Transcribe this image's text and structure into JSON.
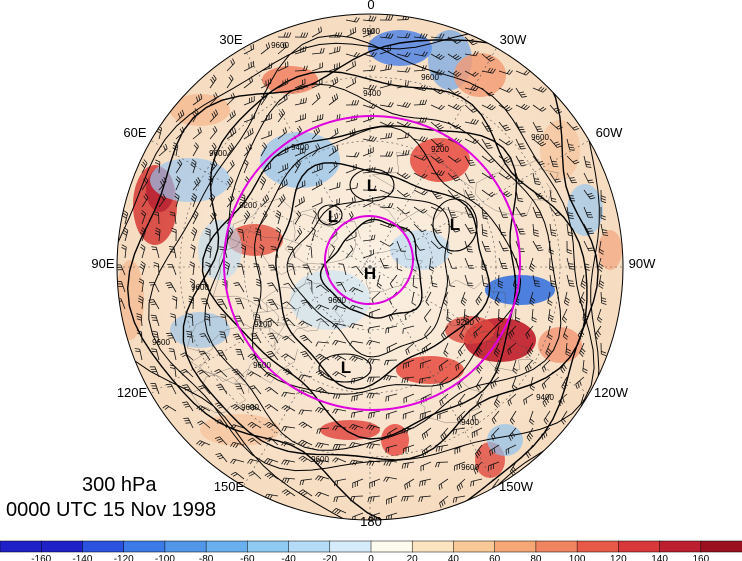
{
  "map": {
    "projection": "north polar stereographic",
    "level_label": "300 hPa",
    "time_label": "0000 UTC 15 Nov 1998",
    "longitude_labels": [
      "0",
      "30W",
      "60W",
      "90W",
      "120W",
      "150W",
      "180",
      "150E",
      "120E",
      "90E",
      "60E",
      "30E"
    ],
    "pressure_systems": [
      {
        "type": "H",
        "label": "H"
      },
      {
        "type": "L",
        "label": "L"
      },
      {
        "type": "L",
        "label": "L"
      },
      {
        "type": "L",
        "label": "L"
      },
      {
        "type": "L",
        "label": "L"
      }
    ],
    "contour_labels": [
      "9600",
      "9500",
      "9400",
      "9200",
      "9600",
      "9200",
      "9600",
      "9200",
      "9600",
      "9600",
      "9400",
      "9200",
      "9600",
      "9600",
      "9600",
      "9600",
      "9400",
      "9400",
      "9600",
      "9600"
    ],
    "colors": {
      "magenta_ring": "#e000e0",
      "contour": "#000000",
      "ocean_outline": "#111111"
    }
  },
  "colorbar": {
    "ticks": [
      "-160",
      "-140",
      "-120",
      "-100",
      "-80",
      "-60",
      "-40",
      "-20",
      "0",
      "20",
      "40",
      "60",
      "80",
      "100",
      "120",
      "140",
      "160"
    ],
    "colors": [
      "#2020c8",
      "#2c52e0",
      "#3c7ae8",
      "#5296ea",
      "#6ab0ee",
      "#8ecaf2",
      "#b4dcf6",
      "#d6ecfa",
      "#fdfaee",
      "#fbe4c0",
      "#f8c896",
      "#f5a876",
      "#f08460",
      "#e85a48",
      "#d8383a",
      "#bc2030",
      "#9a1020"
    ]
  }
}
